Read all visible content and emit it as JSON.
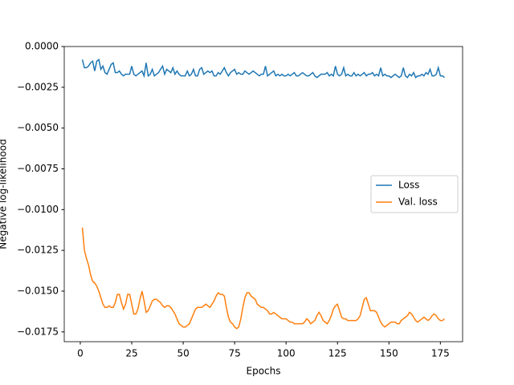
{
  "chart_data": {
    "type": "line",
    "xlabel": "Epochs",
    "ylabel": "Negative log-likelihood",
    "x": [
      1,
      2,
      3,
      4,
      5,
      6,
      7,
      8,
      9,
      10,
      11,
      12,
      13,
      14,
      15,
      16,
      17,
      18,
      19,
      20,
      21,
      22,
      23,
      24,
      25,
      26,
      27,
      28,
      29,
      30,
      31,
      32,
      33,
      34,
      35,
      36,
      37,
      38,
      39,
      40,
      41,
      42,
      43,
      44,
      45,
      46,
      47,
      48,
      49,
      50,
      51,
      52,
      53,
      54,
      55,
      56,
      57,
      58,
      59,
      60,
      61,
      62,
      63,
      64,
      65,
      66,
      67,
      68,
      69,
      70,
      71,
      72,
      73,
      74,
      75,
      76,
      77,
      78,
      79,
      80,
      81,
      82,
      83,
      84,
      85,
      86,
      87,
      88,
      89,
      90,
      91,
      92,
      93,
      94,
      95,
      96,
      97,
      98,
      99,
      100,
      101,
      102,
      103,
      104,
      105,
      106,
      107,
      108,
      109,
      110,
      111,
      112,
      113,
      114,
      115,
      116,
      117,
      118,
      119,
      120,
      121,
      122,
      123,
      124,
      125,
      126,
      127,
      128,
      129,
      130,
      131,
      132,
      133,
      134,
      135,
      136,
      137,
      138,
      139,
      140,
      141,
      142,
      143,
      144,
      145,
      146,
      147,
      148,
      149,
      150,
      151,
      152,
      153,
      154,
      155,
      156,
      157,
      158,
      159,
      160,
      161,
      162,
      163,
      164,
      165,
      166,
      167,
      168,
      169,
      170,
      171,
      172,
      173,
      174,
      175,
      176,
      177
    ],
    "series": [
      {
        "name": "Loss",
        "color": "#1f77b4",
        "values": [
          -0.0008,
          -0.0013,
          -0.0013,
          -0.0012,
          -0.001,
          -0.0009,
          -0.0015,
          -0.0009,
          -0.0008,
          -0.0014,
          -0.0012,
          -0.0016,
          -0.0017,
          -0.0014,
          -0.0011,
          -0.001,
          -0.0016,
          -0.0016,
          -0.0015,
          -0.0017,
          -0.0018,
          -0.0017,
          -0.0017,
          -0.0017,
          -0.0012,
          -0.0017,
          -0.0018,
          -0.0017,
          -0.0016,
          -0.0015,
          -0.0018,
          -0.001,
          -0.0018,
          -0.0017,
          -0.0014,
          -0.0018,
          -0.0017,
          -0.0016,
          -0.0014,
          -0.0012,
          -0.0017,
          -0.0014,
          -0.0015,
          -0.0016,
          -0.0013,
          -0.0017,
          -0.0015,
          -0.0017,
          -0.0018,
          -0.0018,
          -0.0018,
          -0.0015,
          -0.0018,
          -0.0017,
          -0.0014,
          -0.0018,
          -0.0018,
          -0.0014,
          -0.0013,
          -0.0017,
          -0.0016,
          -0.0015,
          -0.0016,
          -0.0015,
          -0.0018,
          -0.0018,
          -0.0016,
          -0.0017,
          -0.0015,
          -0.0013,
          -0.0016,
          -0.0018,
          -0.0016,
          -0.0015,
          -0.0014,
          -0.0017,
          -0.0016,
          -0.0017,
          -0.0017,
          -0.0015,
          -0.0016,
          -0.0017,
          -0.0016,
          -0.0015,
          -0.0016,
          -0.0017,
          -0.0018,
          -0.0017,
          -0.0017,
          -0.0012,
          -0.0018,
          -0.0017,
          -0.0016,
          -0.0015,
          -0.0018,
          -0.0017,
          -0.0018,
          -0.0017,
          -0.0018,
          -0.0018,
          -0.0017,
          -0.0018,
          -0.0017,
          -0.0016,
          -0.0018,
          -0.0018,
          -0.0017,
          -0.0016,
          -0.0017,
          -0.0018,
          -0.0018,
          -0.0017,
          -0.0016,
          -0.0018,
          -0.0019,
          -0.0018,
          -0.0017,
          -0.0017,
          -0.0017,
          -0.0016,
          -0.0018,
          -0.0017,
          -0.0018,
          -0.0012,
          -0.0017,
          -0.0018,
          -0.0017,
          -0.0013,
          -0.0018,
          -0.0017,
          -0.0018,
          -0.0018,
          -0.0016,
          -0.0018,
          -0.0017,
          -0.0018,
          -0.0017,
          -0.0016,
          -0.0018,
          -0.0017,
          -0.0017,
          -0.0016,
          -0.0018,
          -0.0017,
          -0.0018,
          -0.0013,
          -0.0018,
          -0.0017,
          -0.0018,
          -0.0018,
          -0.0019,
          -0.0018,
          -0.0017,
          -0.0018,
          -0.0019,
          -0.0018,
          -0.0013,
          -0.0018,
          -0.0019,
          -0.0017,
          -0.0018,
          -0.0016,
          -0.0019,
          -0.0018,
          -0.0018,
          -0.0017,
          -0.0018,
          -0.0016,
          -0.0017,
          -0.0014,
          -0.0018,
          -0.0018,
          -0.0017,
          -0.0013,
          -0.0018,
          -0.0018,
          -0.0019
        ]
      },
      {
        "name": "Val. loss",
        "color": "#ff7f0e",
        "values": [
          -0.0111,
          -0.0125,
          -0.013,
          -0.0134,
          -0.014,
          -0.0144,
          -0.0145,
          -0.0147,
          -0.015,
          -0.0154,
          -0.0158,
          -0.016,
          -0.016,
          -0.0159,
          -0.016,
          -0.016,
          -0.0157,
          -0.0152,
          -0.0152,
          -0.0157,
          -0.0161,
          -0.0158,
          -0.0152,
          -0.0152,
          -0.0158,
          -0.0164,
          -0.0164,
          -0.0161,
          -0.0155,
          -0.015,
          -0.0156,
          -0.0163,
          -0.0162,
          -0.0159,
          -0.0156,
          -0.0155,
          -0.0155,
          -0.0156,
          -0.0157,
          -0.0159,
          -0.016,
          -0.0159,
          -0.0159,
          -0.016,
          -0.0162,
          -0.0164,
          -0.0167,
          -0.017,
          -0.0171,
          -0.0172,
          -0.0172,
          -0.0171,
          -0.017,
          -0.0167,
          -0.0164,
          -0.0161,
          -0.016,
          -0.016,
          -0.016,
          -0.0159,
          -0.0158,
          -0.0159,
          -0.016,
          -0.0158,
          -0.0156,
          -0.0153,
          -0.0151,
          -0.0152,
          -0.0152,
          -0.0153,
          -0.016,
          -0.0166,
          -0.0169,
          -0.017,
          -0.0172,
          -0.0173,
          -0.0172,
          -0.0167,
          -0.016,
          -0.0154,
          -0.0151,
          -0.0151,
          -0.0153,
          -0.0154,
          -0.0155,
          -0.0158,
          -0.0159,
          -0.016,
          -0.016,
          -0.0161,
          -0.0162,
          -0.0164,
          -0.0164,
          -0.0163,
          -0.0164,
          -0.0165,
          -0.0166,
          -0.0167,
          -0.0167,
          -0.0167,
          -0.0168,
          -0.0169,
          -0.0169,
          -0.017,
          -0.017,
          -0.017,
          -0.017,
          -0.017,
          -0.0169,
          -0.0167,
          -0.0168,
          -0.017,
          -0.0169,
          -0.0168,
          -0.0165,
          -0.0163,
          -0.0165,
          -0.0168,
          -0.0169,
          -0.017,
          -0.0168,
          -0.0165,
          -0.0161,
          -0.0159,
          -0.0158,
          -0.0162,
          -0.0166,
          -0.0167,
          -0.0167,
          -0.0168,
          -0.0168,
          -0.0168,
          -0.0168,
          -0.0168,
          -0.0167,
          -0.0165,
          -0.016,
          -0.0155,
          -0.0154,
          -0.0158,
          -0.0162,
          -0.0162,
          -0.0162,
          -0.0163,
          -0.0166,
          -0.0169,
          -0.0171,
          -0.0172,
          -0.0171,
          -0.017,
          -0.0169,
          -0.0169,
          -0.0169,
          -0.017,
          -0.017,
          -0.0168,
          -0.0167,
          -0.0166,
          -0.0165,
          -0.0163,
          -0.0164,
          -0.0166,
          -0.0168,
          -0.0169,
          -0.0168,
          -0.0167,
          -0.0166,
          -0.0167,
          -0.0168,
          -0.0167,
          -0.0165,
          -0.0164,
          -0.0165,
          -0.0167,
          -0.0168,
          -0.0168,
          -0.0167
        ]
      }
    ],
    "xlim": [
      -7.8,
      185.8
    ],
    "xticks": [
      0,
      25,
      50,
      75,
      100,
      125,
      150,
      175
    ],
    "ylim": [
      -0.0181,
      0
    ],
    "yticks": [
      {
        "value": 0,
        "label": "0.0000"
      },
      {
        "value": -0.0025,
        "label": "−0.0025"
      },
      {
        "value": -0.005,
        "label": "−0.0050"
      },
      {
        "value": -0.0075,
        "label": "−0.0075"
      },
      {
        "value": -0.01,
        "label": "−0.0100"
      },
      {
        "value": -0.0125,
        "label": "−0.0125"
      },
      {
        "value": -0.015,
        "label": "−0.0150"
      },
      {
        "value": -0.0175,
        "label": "−0.0175"
      }
    ],
    "legend": "center right"
  }
}
